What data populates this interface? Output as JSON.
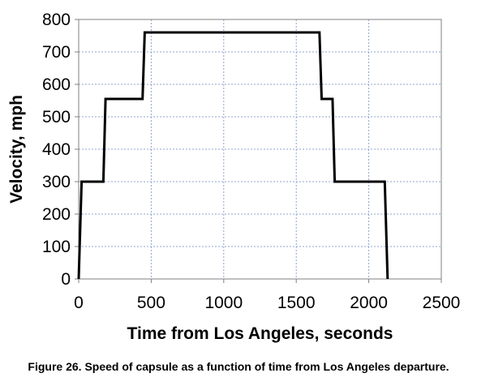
{
  "chart_data": {
    "type": "line",
    "xlabel": "Time from Los Angeles, seconds",
    "ylabel": "Velocity, mph",
    "xlim": [
      0,
      2500
    ],
    "ylim": [
      0,
      800
    ],
    "xticks": [
      0,
      500,
      1000,
      1500,
      2000,
      2500
    ],
    "yticks": [
      0,
      100,
      200,
      300,
      400,
      500,
      600,
      700,
      800
    ],
    "grid": true,
    "series": [
      {
        "color": "#000000",
        "x": [
          0,
          20,
          170,
          185,
          440,
          455,
          1660,
          1675,
          1750,
          1765,
          2110,
          2130
        ],
        "y": [
          0,
          300,
          300,
          555,
          555,
          760,
          760,
          555,
          555,
          300,
          300,
          0
        ]
      }
    ]
  },
  "caption": "Figure 26. Speed of capsule as a function of time from Los Angeles departure."
}
